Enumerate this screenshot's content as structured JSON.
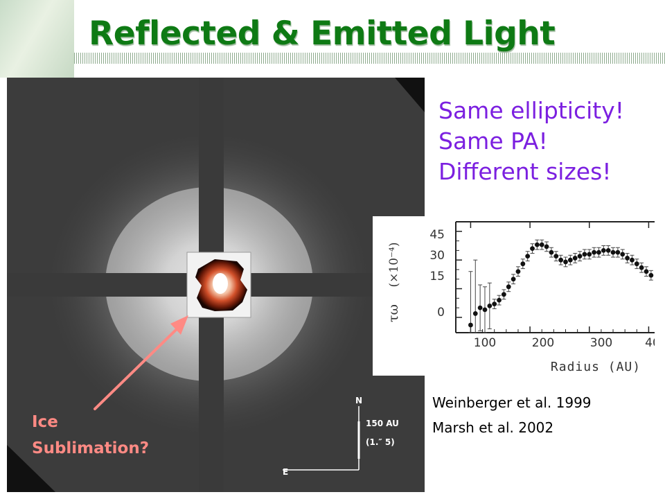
{
  "slide": {
    "title": "Reflected & Emitted Light",
    "callout_lines": [
      "Same ellipticity!",
      "Same PA!",
      "Different sizes!"
    ],
    "references": [
      "Weinberger et al. 1999",
      "Marsh et al. 2002"
    ],
    "annotation_lines": [
      "Ice",
      "Sublimation?"
    ]
  },
  "hst_image": {
    "compass_north": "N",
    "compass_east": "E",
    "scale_bar_label": "150 AU",
    "scale_bar_sublabel": "(1.″ 5)"
  },
  "plot": {
    "xlabel": "Radius (AU)",
    "ylabel_parts": [
      "τω",
      "(×10⁻⁴)"
    ],
    "y_ticks": [
      "45",
      "30",
      "15",
      "0"
    ],
    "x_ticks": [
      "100",
      "200",
      "300",
      "40"
    ]
  },
  "chart_data": {
    "type": "scatter",
    "xlabel": "Radius (AU)",
    "ylabel": "τω (×10⁻⁴)",
    "xlim": [
      75,
      410
    ],
    "ylim": [
      -8,
      50
    ],
    "x": [
      100,
      108,
      116,
      124,
      132,
      140,
      148,
      156,
      164,
      172,
      180,
      188,
      196,
      204,
      212,
      220,
      228,
      236,
      244,
      252,
      260,
      268,
      276,
      284,
      292,
      300,
      308,
      316,
      324,
      332,
      340,
      348,
      356,
      364,
      372,
      380,
      388,
      396,
      404
    ],
    "y": [
      -4,
      2,
      5,
      4,
      6,
      7,
      9,
      12,
      16,
      20,
      24,
      28,
      32,
      36,
      38,
      38,
      37,
      34,
      32,
      30,
      29,
      30,
      31,
      32,
      33,
      33,
      34,
      34,
      35,
      35,
      34,
      34,
      33,
      31,
      30,
      28,
      26,
      24,
      22
    ],
    "grid": false,
    "legend": "none"
  },
  "colors": {
    "title": "#0e7a14",
    "callout": "#7b1fe0",
    "annotation": "#ff8a84",
    "background": "#ffffff"
  }
}
